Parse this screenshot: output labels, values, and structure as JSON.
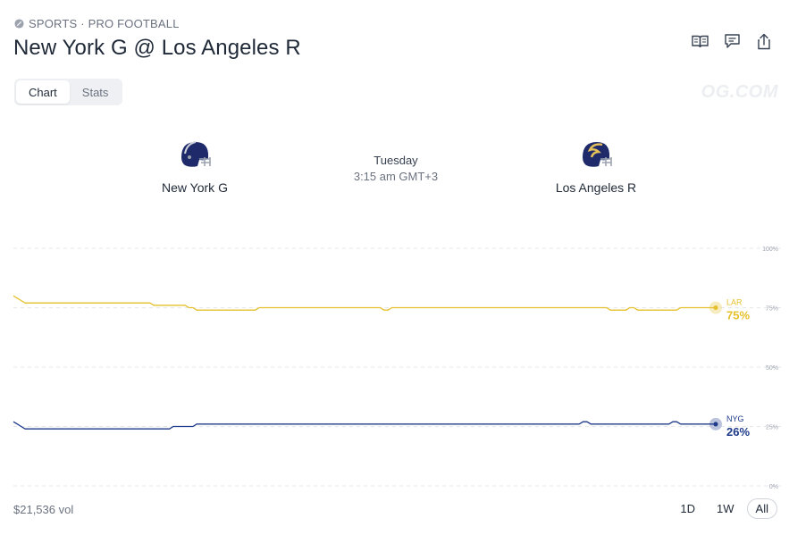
{
  "header": {
    "category": "SPORTS · PRO FOOTBALL",
    "title": "New York G @ Los Angeles R",
    "actions": [
      "book-icon",
      "comment-icon",
      "share-icon"
    ]
  },
  "tabs": [
    {
      "label": "Chart",
      "active": true
    },
    {
      "label": "Stats",
      "active": false
    }
  ],
  "watermark": "OG.COM",
  "game": {
    "day": "Tuesday",
    "time": "3:15 am GMT+3",
    "home": {
      "name": "New York G",
      "helmet_color": "#1f2a6b",
      "stripe_color": "#d1d5db"
    },
    "away": {
      "name": "Los Angeles R",
      "helmet_color": "#1f2a6b",
      "stripe_color": "#e5c15a"
    }
  },
  "chart_data": {
    "type": "line",
    "ylim": [
      0,
      100
    ],
    "y_ticks": [
      0,
      25,
      50,
      75,
      100
    ],
    "y_tick_labels": [
      "0%",
      "25%",
      "50%",
      "75%",
      "100%"
    ],
    "grid": true,
    "legend": "end-of-line labels",
    "series": [
      {
        "name": "LAR",
        "current_label": "75%",
        "color": "#e6c02a",
        "values": [
          80,
          79,
          78,
          77,
          77,
          77,
          77,
          77,
          77,
          77,
          77,
          77,
          77,
          77,
          77,
          77,
          77,
          77,
          77,
          77,
          77,
          77,
          77,
          77,
          77,
          77,
          77,
          77,
          77,
          77,
          77,
          77,
          77,
          77,
          77,
          77,
          76,
          76,
          76,
          76,
          76,
          76,
          76,
          76,
          76,
          75,
          75,
          74,
          74,
          74,
          74,
          74,
          74,
          74,
          74,
          74,
          74,
          74,
          74,
          74,
          74,
          74,
          74,
          75,
          75,
          75,
          75,
          75,
          75,
          75,
          75,
          75,
          75,
          75,
          75,
          75,
          75,
          75,
          75,
          75,
          75,
          75,
          75,
          75,
          75,
          75,
          75,
          75,
          75,
          75,
          75,
          75,
          75,
          75,
          75,
          74,
          74,
          75,
          75,
          75,
          75,
          75,
          75,
          75,
          75,
          75,
          75,
          75,
          75,
          75,
          75,
          75,
          75,
          75,
          75,
          75,
          75,
          75,
          75,
          75,
          75,
          75,
          75,
          75,
          75,
          75,
          75,
          75,
          75,
          75,
          75,
          75,
          75,
          75,
          75,
          75,
          75,
          75,
          75,
          75,
          75,
          75,
          75,
          75,
          75,
          75,
          75,
          75,
          75,
          75,
          75,
          75,
          75,
          74,
          74,
          74,
          74,
          74,
          75,
          75,
          74,
          74,
          74,
          74,
          74,
          74,
          74,
          74,
          74,
          74,
          74,
          75,
          75,
          75,
          75,
          75,
          75,
          75,
          75,
          75,
          75
        ]
      },
      {
        "name": "NYG",
        "current_label": "26%",
        "color": "#1e3a8a",
        "values": [
          27,
          26,
          25,
          24,
          24,
          24,
          24,
          24,
          24,
          24,
          24,
          24,
          24,
          24,
          24,
          24,
          24,
          24,
          24,
          24,
          24,
          24,
          24,
          24,
          24,
          24,
          24,
          24,
          24,
          24,
          24,
          24,
          24,
          24,
          24,
          24,
          24,
          24,
          24,
          24,
          24,
          25,
          25,
          25,
          25,
          25,
          25,
          26,
          26,
          26,
          26,
          26,
          26,
          26,
          26,
          26,
          26,
          26,
          26,
          26,
          26,
          26,
          26,
          26,
          26,
          26,
          26,
          26,
          26,
          26,
          26,
          26,
          26,
          26,
          26,
          26,
          26,
          26,
          26,
          26,
          26,
          26,
          26,
          26,
          26,
          26,
          26,
          26,
          26,
          26,
          26,
          26,
          26,
          26,
          26,
          26,
          26,
          26,
          26,
          26,
          26,
          26,
          26,
          26,
          26,
          26,
          26,
          26,
          26,
          26,
          26,
          26,
          26,
          26,
          26,
          26,
          26,
          26,
          26,
          26,
          26,
          26,
          26,
          26,
          26,
          26,
          26,
          26,
          26,
          26,
          26,
          26,
          26,
          26,
          26,
          26,
          26,
          26,
          26,
          26,
          26,
          26,
          26,
          26,
          26,
          26,
          27,
          27,
          26,
          26,
          26,
          26,
          26,
          26,
          26,
          26,
          26,
          26,
          26,
          26,
          26,
          26,
          26,
          26,
          26,
          26,
          26,
          26,
          26,
          27,
          27,
          26,
          26,
          26,
          26,
          26,
          26,
          26,
          26,
          26,
          26
        ]
      }
    ]
  },
  "footer": {
    "volume": "$21,536 vol",
    "ranges": [
      {
        "label": "1D",
        "active": false
      },
      {
        "label": "1W",
        "active": false
      },
      {
        "label": "All",
        "active": true
      }
    ]
  }
}
